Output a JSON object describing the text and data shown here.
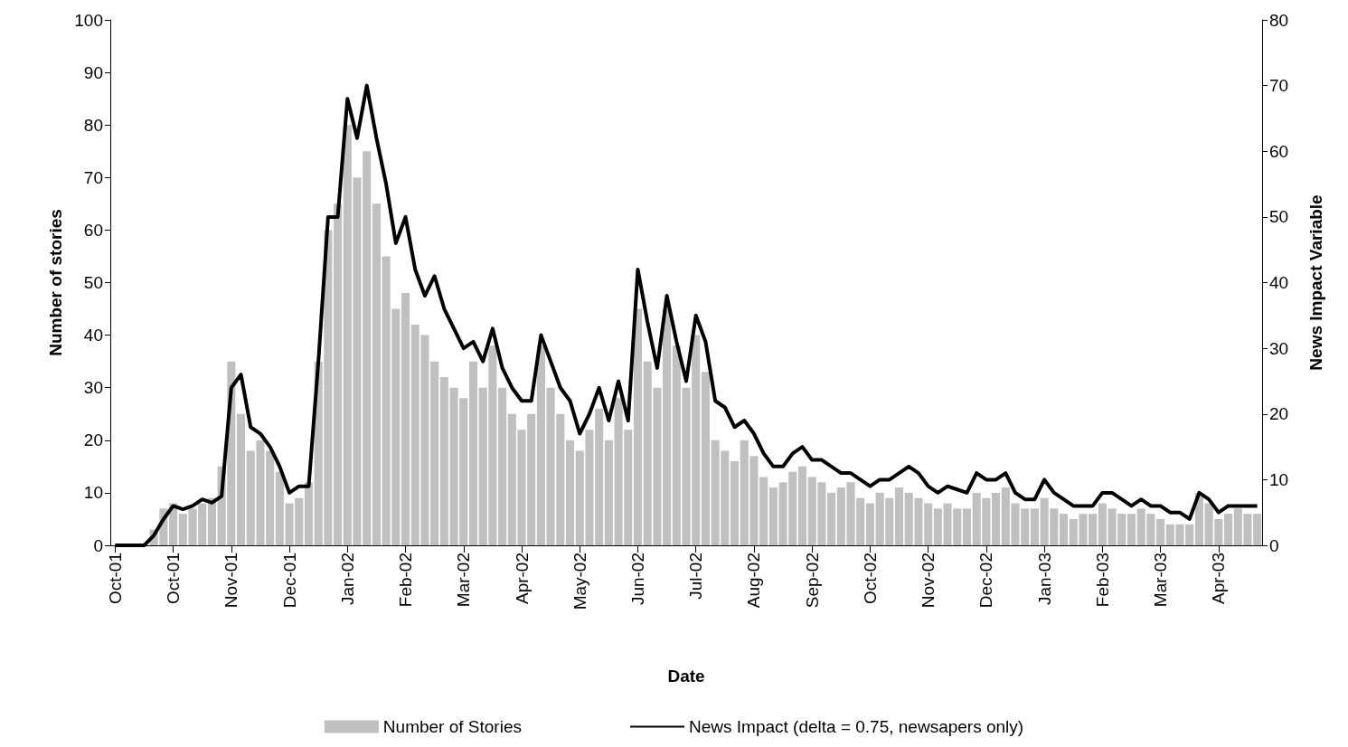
{
  "chart_data": {
    "type": "bar",
    "xlabel": "Date",
    "ylabel": "Number of stories",
    "y2label": "News Impact Variable",
    "categories": [
      "Oct-01",
      null,
      null,
      null,
      null,
      null,
      "Oct-01",
      null,
      null,
      null,
      null,
      null,
      "Nov-01",
      null,
      null,
      null,
      null,
      null,
      "Dec-01",
      null,
      null,
      null,
      null,
      null,
      "Jan-02",
      null,
      null,
      null,
      null,
      null,
      "Feb-02",
      null,
      null,
      null,
      null,
      null,
      "Mar-02",
      null,
      null,
      null,
      null,
      null,
      "Apr-02",
      null,
      null,
      null,
      null,
      null,
      "May-02",
      null,
      null,
      null,
      null,
      null,
      "Jun-02",
      null,
      null,
      null,
      null,
      null,
      "Jul-02",
      null,
      null,
      null,
      null,
      null,
      "Aug-02",
      null,
      null,
      null,
      null,
      null,
      "Sep-02",
      null,
      null,
      null,
      null,
      null,
      "Oct-02",
      null,
      null,
      null,
      null,
      null,
      "Nov-02",
      null,
      null,
      null,
      null,
      null,
      "Dec-02",
      null,
      null,
      null,
      null,
      null,
      "Jan-03",
      null,
      null,
      null,
      null,
      null,
      "Feb-03",
      null,
      null,
      null,
      null,
      null,
      "Mar-03",
      null,
      null,
      null,
      null,
      null,
      "Apr-03",
      null,
      null,
      null,
      null
    ],
    "series": [
      {
        "name": "Number of Stories",
        "color": "#c0c0c0",
        "values": [
          0,
          0,
          0,
          0,
          3,
          7,
          8,
          6,
          7,
          8,
          9,
          15,
          35,
          25,
          18,
          20,
          18,
          14,
          8,
          9,
          12,
          35,
          60,
          65,
          80,
          70,
          75,
          65,
          55,
          45,
          48,
          42,
          40,
          35,
          32,
          30,
          28,
          35,
          30,
          38,
          30,
          25,
          22,
          25,
          38,
          30,
          25,
          20,
          18,
          22,
          26,
          20,
          28,
          22,
          45,
          35,
          30,
          45,
          38,
          30,
          40,
          33,
          20,
          18,
          16,
          20,
          17,
          13,
          11,
          12,
          14,
          15,
          13,
          12,
          10,
          11,
          12,
          9,
          8,
          10,
          9,
          11,
          10,
          9,
          8,
          7,
          8,
          7,
          7,
          10,
          9,
          10,
          11,
          8,
          7,
          7,
          9,
          7,
          6,
          5,
          6,
          6,
          8,
          7,
          6,
          6,
          7,
          6,
          5,
          4,
          4,
          4,
          10,
          8,
          5,
          6,
          7,
          6,
          6
        ]
      },
      {
        "name": "News Impact (delta = 0.75, newsapers only)",
        "type": "line",
        "axis": "y2",
        "color": "#000000",
        "values": [
          0,
          0,
          0,
          0,
          1.5,
          4,
          6,
          5.5,
          6,
          7,
          6.5,
          7.5,
          24,
          26,
          18,
          17,
          15,
          12,
          8,
          9,
          9,
          28,
          50,
          50,
          68,
          62,
          70,
          62,
          55,
          46,
          50,
          42,
          38,
          41,
          36,
          33,
          30,
          31,
          28,
          33,
          27,
          24,
          22,
          22,
          32,
          28,
          24,
          22,
          17,
          20,
          24,
          19,
          25,
          19,
          42,
          34,
          27,
          38,
          31,
          25,
          35,
          31,
          22,
          21,
          18,
          19,
          17,
          14,
          12,
          12,
          14,
          15,
          13,
          13,
          12,
          11,
          11,
          10,
          9,
          10,
          10,
          11,
          12,
          11,
          9,
          8,
          9,
          8.5,
          8,
          11,
          10,
          10,
          11,
          8,
          7,
          7,
          10,
          8,
          7,
          6,
          6,
          6,
          8,
          8,
          7,
          6,
          7,
          6,
          6,
          5,
          5,
          4,
          8,
          7,
          5,
          6,
          6,
          6,
          6
        ]
      }
    ],
    "ylim": [
      0,
      100
    ],
    "yticks": [
      0,
      10,
      20,
      30,
      40,
      50,
      60,
      70,
      80,
      90,
      100
    ],
    "y2lim": [
      0,
      80
    ],
    "y2ticks": [
      0,
      10,
      20,
      30,
      40,
      50,
      60,
      70,
      80
    ],
    "grid": false,
    "legend": "bottom",
    "marker": "none",
    "line_style": "solid"
  }
}
